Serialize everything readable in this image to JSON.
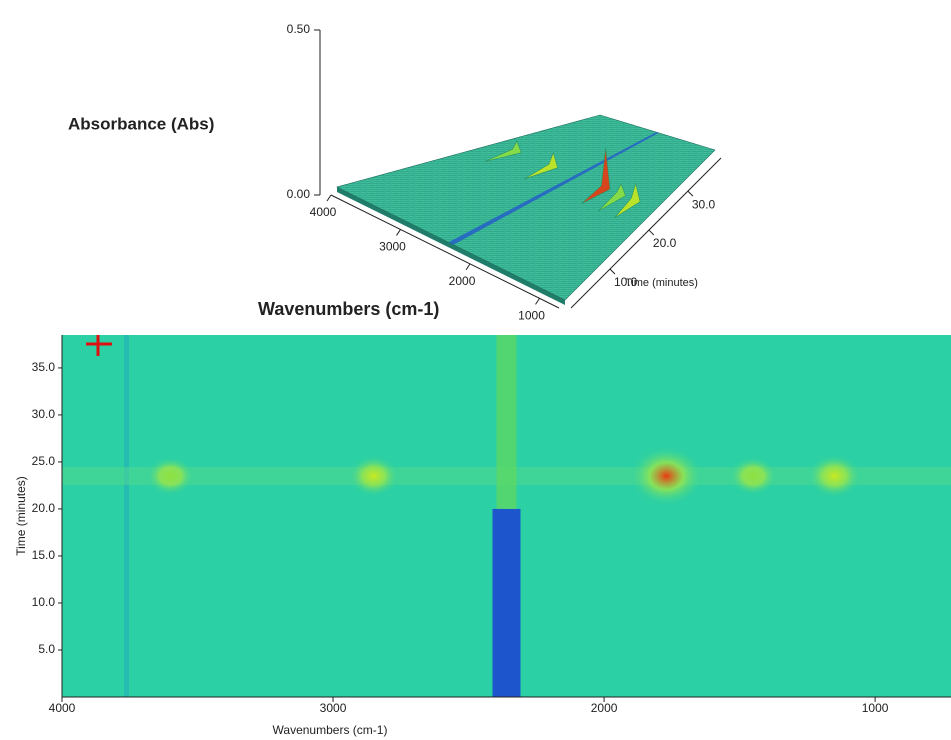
{
  "chart_data": [
    {
      "type": "surface3d",
      "zlabel": "Absorbance (Abs)",
      "xlabel": "Wavenumbers (cm-1)",
      "ylabel": "Time (minutes)",
      "xlim": [
        4000,
        720
      ],
      "ylim": [
        0,
        38.5
      ],
      "zlim": [
        0,
        0.5
      ],
      "xticks": [
        4000,
        3000,
        2000,
        1000
      ],
      "yticks": [
        {
          "value": 10,
          "label": "10.0"
        },
        {
          "value": 20,
          "label": "20.0"
        },
        {
          "value": 30,
          "label": "30.0"
        }
      ],
      "zticks": [
        {
          "value": 0,
          "label": "0.00"
        },
        {
          "value": 0.5,
          "label": "0.50"
        }
      ],
      "x": [
        3600,
        2850,
        2360,
        1770,
        1450,
        1150
      ],
      "y": [
        23.5,
        23.5,
        10,
        23.5,
        23.5,
        23.5
      ],
      "values": [
        0.03,
        0.04,
        -0.03,
        0.12,
        0.03,
        0.05
      ]
    },
    {
      "type": "heatmap",
      "xlabel": "Wavenumbers (cm-1)",
      "ylabel": "Time (minutes)",
      "xlim": [
        4000,
        720
      ],
      "ylim": [
        0,
        38.5
      ],
      "xticks": [
        4000,
        3000,
        2000,
        1000
      ],
      "yticks": [
        {
          "value": 5,
          "label": "5.0"
        },
        {
          "value": 10,
          "label": "10.0"
        },
        {
          "value": 15,
          "label": "15.0"
        },
        {
          "value": 20,
          "label": "20.0"
        },
        {
          "value": 25,
          "label": "25.0"
        },
        {
          "value": 30,
          "label": "30.0"
        },
        {
          "value": 35,
          "label": "35.0"
        }
      ],
      "x": [
        3600,
        2850,
        2360,
        1770,
        1450,
        1150
      ],
      "y": [
        23.5,
        23.5,
        10,
        23.5,
        23.5,
        23.5
      ],
      "values": [
        0.03,
        0.04,
        -0.03,
        0.12,
        0.03,
        0.05
      ]
    }
  ]
}
